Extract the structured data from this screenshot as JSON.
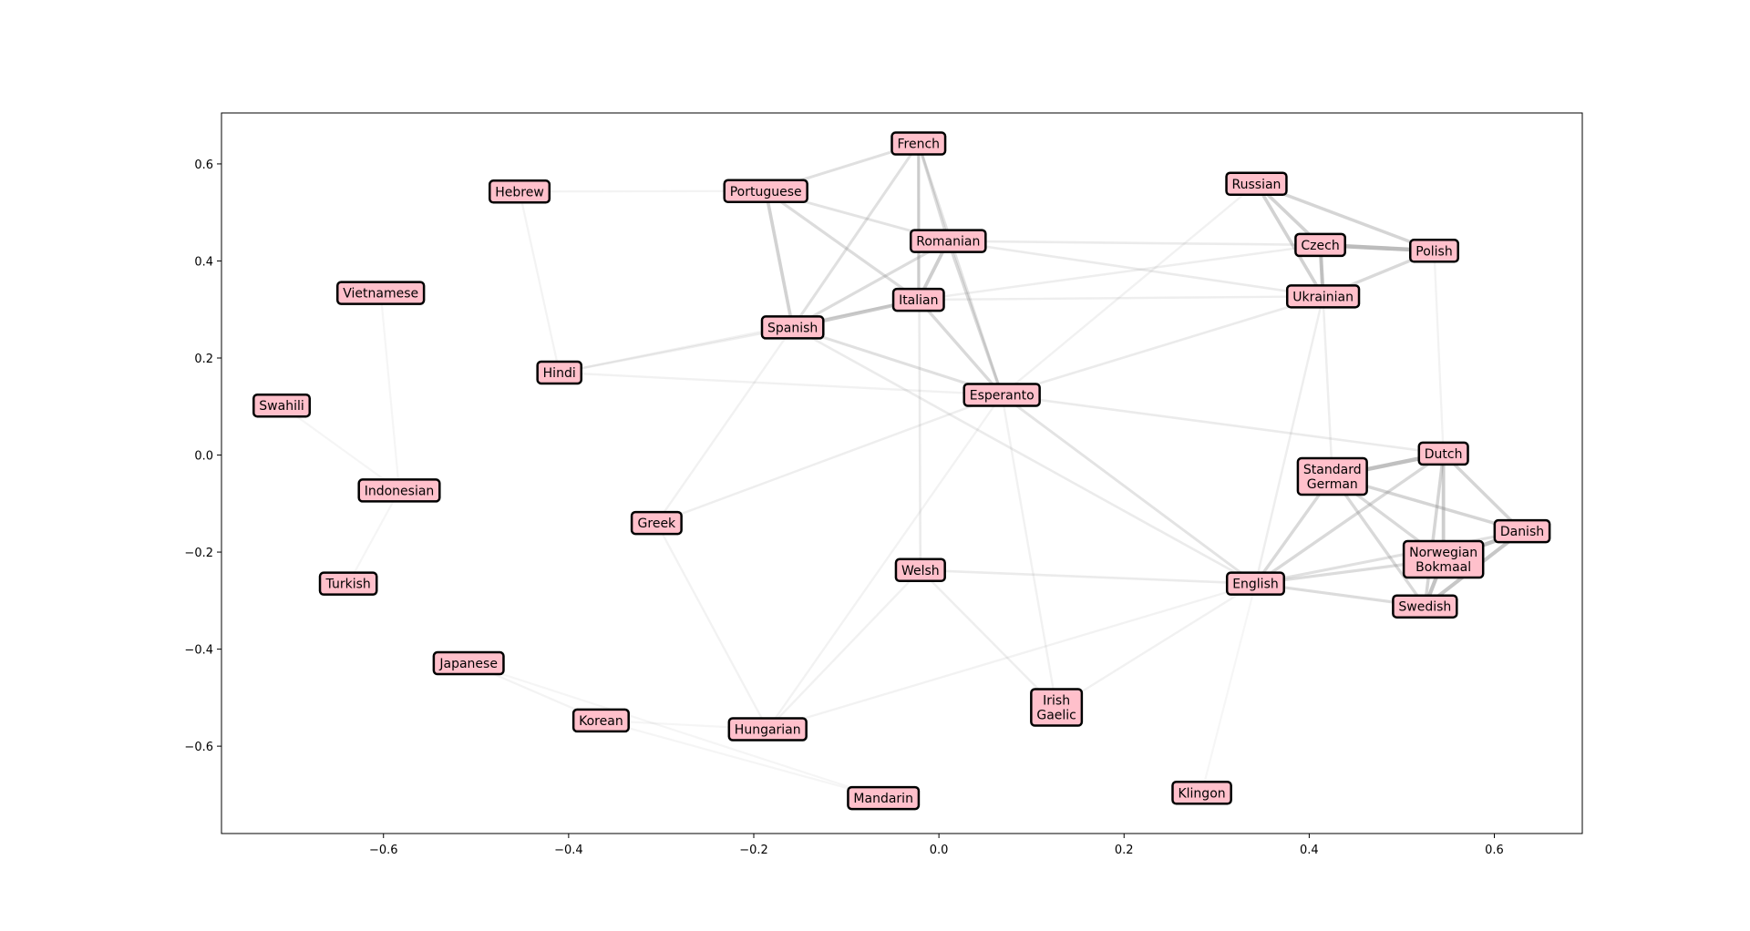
{
  "chart_data": {
    "type": "scatter",
    "title": "",
    "xlabel": "",
    "ylabel": "",
    "xlim": [
      -0.775,
      0.695
    ],
    "ylim": [
      -0.78,
      0.705
    ],
    "xticks": [
      -0.6,
      -0.4,
      -0.2,
      0.0,
      0.2,
      0.4,
      0.6
    ],
    "yticks": [
      -0.6,
      -0.4,
      -0.2,
      0.0,
      0.2,
      0.4,
      0.6
    ],
    "xtick_labels": [
      "−0.6",
      "−0.4",
      "−0.2",
      "0.0",
      "0.2",
      "0.4",
      "0.6"
    ],
    "ytick_labels": [
      "−0.6",
      "−0.4",
      "−0.2",
      "0.0",
      "0.2",
      "0.4",
      "0.6"
    ],
    "grid": false,
    "colors": {
      "node_fill": "#ffc0cb",
      "node_border": "#000000",
      "edge": "#888888",
      "frame": "#000000"
    },
    "nodes": [
      {
        "name": "French",
        "x": -0.022,
        "y": 0.642
      },
      {
        "name": "Hebrew",
        "x": -0.453,
        "y": 0.543
      },
      {
        "name": "Portuguese",
        "x": -0.187,
        "y": 0.544
      },
      {
        "name": "Russian",
        "x": 0.343,
        "y": 0.559
      },
      {
        "name": "Romanian",
        "x": 0.01,
        "y": 0.441
      },
      {
        "name": "Czech",
        "x": 0.412,
        "y": 0.433
      },
      {
        "name": "Polish",
        "x": 0.535,
        "y": 0.421
      },
      {
        "name": "Vietnamese",
        "x": -0.603,
        "y": 0.334
      },
      {
        "name": "Italian",
        "x": -0.022,
        "y": 0.32
      },
      {
        "name": "Ukrainian",
        "x": 0.415,
        "y": 0.327
      },
      {
        "name": "Spanish",
        "x": -0.158,
        "y": 0.263
      },
      {
        "name": "Hindi",
        "x": -0.41,
        "y": 0.17
      },
      {
        "name": "Swahili",
        "x": -0.71,
        "y": 0.102
      },
      {
        "name": "Esperanto",
        "x": 0.068,
        "y": 0.124
      },
      {
        "name": "Dutch",
        "x": 0.545,
        "y": 0.003
      },
      {
        "name": "Standard\nGerman",
        "x": 0.425,
        "y": -0.044
      },
      {
        "name": "Indonesian",
        "x": -0.583,
        "y": -0.073
      },
      {
        "name": "Greek",
        "x": -0.305,
        "y": -0.14
      },
      {
        "name": "Danish",
        "x": 0.63,
        "y": -0.157
      },
      {
        "name": "Norwegian\nBokmaal",
        "x": 0.545,
        "y": -0.215
      },
      {
        "name": "Welsh",
        "x": -0.02,
        "y": -0.237
      },
      {
        "name": "Turkish",
        "x": -0.638,
        "y": -0.265
      },
      {
        "name": "English",
        "x": 0.342,
        "y": -0.265
      },
      {
        "name": "Swedish",
        "x": 0.525,
        "y": -0.312
      },
      {
        "name": "Japanese",
        "x": -0.508,
        "y": -0.429
      },
      {
        "name": "Irish\nGaelic",
        "x": 0.127,
        "y": -0.52
      },
      {
        "name": "Korean",
        "x": -0.365,
        "y": -0.547
      },
      {
        "name": "Hungarian",
        "x": -0.185,
        "y": -0.565
      },
      {
        "name": "Klingon",
        "x": 0.284,
        "y": -0.696
      },
      {
        "name": "Mandarin",
        "x": -0.06,
        "y": -0.707
      }
    ],
    "edges": [
      {
        "source": "Czech",
        "target": "Polish",
        "weight": 0.85
      },
      {
        "source": "Dutch",
        "target": "Standard\nGerman",
        "weight": 0.8
      },
      {
        "source": "Czech",
        "target": "Ukrainian",
        "weight": 0.7
      },
      {
        "source": "Danish",
        "target": "Norwegian\nBokmaal",
        "weight": 0.8
      },
      {
        "source": "Norwegian\nBokmaal",
        "target": "Swedish",
        "weight": 0.75
      },
      {
        "source": "Danish",
        "target": "Swedish",
        "weight": 0.7
      },
      {
        "source": "Dutch",
        "target": "Norwegian\nBokmaal",
        "weight": 0.6
      },
      {
        "source": "Italian",
        "target": "Spanish",
        "weight": 0.65
      },
      {
        "source": "Italian",
        "target": "Romanian",
        "weight": 0.6
      },
      {
        "source": "Portuguese",
        "target": "Spanish",
        "weight": 0.55
      },
      {
        "source": "Russian",
        "target": "Czech",
        "weight": 0.55
      },
      {
        "source": "Russian",
        "target": "Ukrainian",
        "weight": 0.55
      },
      {
        "source": "Russian",
        "target": "Polish",
        "weight": 0.5
      },
      {
        "source": "Polish",
        "target": "Ukrainian",
        "weight": 0.45
      },
      {
        "source": "Dutch",
        "target": "Danish",
        "weight": 0.5
      },
      {
        "source": "Dutch",
        "target": "Swedish",
        "weight": 0.5
      },
      {
        "source": "Standard\nGerman",
        "target": "Danish",
        "weight": 0.5
      },
      {
        "source": "Standard\nGerman",
        "target": "Norwegian\nBokmaal",
        "weight": 0.45
      },
      {
        "source": "Standard\nGerman",
        "target": "Swedish",
        "weight": 0.45
      },
      {
        "source": "English",
        "target": "Standard\nGerman",
        "weight": 0.45
      },
      {
        "source": "English",
        "target": "Dutch",
        "weight": 0.45
      },
      {
        "source": "English",
        "target": "Norwegian\nBokmaal",
        "weight": 0.4
      },
      {
        "source": "English",
        "target": "Swedish",
        "weight": 0.4
      },
      {
        "source": "English",
        "target": "Danish",
        "weight": 0.35
      },
      {
        "source": "French",
        "target": "Italian",
        "weight": 0.45
      },
      {
        "source": "French",
        "target": "Romanian",
        "weight": 0.4
      },
      {
        "source": "French",
        "target": "Spanish",
        "weight": 0.35
      },
      {
        "source": "French",
        "target": "Portuguese",
        "weight": 0.35
      },
      {
        "source": "Portuguese",
        "target": "Italian",
        "weight": 0.4
      },
      {
        "source": "Portuguese",
        "target": "Romanian",
        "weight": 0.3
      },
      {
        "source": "Romanian",
        "target": "Spanish",
        "weight": 0.4
      },
      {
        "source": "Romanian",
        "target": "Esperanto",
        "weight": 0.45
      },
      {
        "source": "Italian",
        "target": "Esperanto",
        "weight": 0.45
      },
      {
        "source": "Spanish",
        "target": "Esperanto",
        "weight": 0.35
      },
      {
        "source": "French",
        "target": "Esperanto",
        "weight": 0.3
      },
      {
        "source": "Esperanto",
        "target": "English",
        "weight": 0.3
      },
      {
        "source": "Esperanto",
        "target": "Ukrainian",
        "weight": 0.2
      },
      {
        "source": "Esperanto",
        "target": "Dutch",
        "weight": 0.2
      },
      {
        "source": "Romanian",
        "target": "Czech",
        "weight": 0.2
      },
      {
        "source": "Romanian",
        "target": "Ukrainian",
        "weight": 0.2
      },
      {
        "source": "Italian",
        "target": "Czech",
        "weight": 0.15
      },
      {
        "source": "Italian",
        "target": "Ukrainian",
        "weight": 0.15
      },
      {
        "source": "Spanish",
        "target": "English",
        "weight": 0.2
      },
      {
        "source": "French",
        "target": "Welsh",
        "weight": 0.2
      },
      {
        "source": "Welsh",
        "target": "English",
        "weight": 0.2
      },
      {
        "source": "Welsh",
        "target": "Irish\nGaelic",
        "weight": 0.15
      },
      {
        "source": "Welsh",
        "target": "Hungarian",
        "weight": 0.12
      },
      {
        "source": "Greek",
        "target": "Esperanto",
        "weight": 0.15
      },
      {
        "source": "Greek",
        "target": "Spanish",
        "weight": 0.12
      },
      {
        "source": "Greek",
        "target": "Hungarian",
        "weight": 0.1
      },
      {
        "source": "Hindi",
        "target": "Spanish",
        "weight": 0.15
      },
      {
        "source": "Hindi",
        "target": "Italian",
        "weight": 0.12
      },
      {
        "source": "Hindi",
        "target": "Esperanto",
        "weight": 0.12
      },
      {
        "source": "Irish\nGaelic",
        "target": "English",
        "weight": 0.12
      },
      {
        "source": "Irish\nGaelic",
        "target": "Esperanto",
        "weight": 0.12
      },
      {
        "source": "Hungarian",
        "target": "English",
        "weight": 0.1
      },
      {
        "source": "Hungarian",
        "target": "Esperanto",
        "weight": 0.1
      },
      {
        "source": "Russian",
        "target": "Esperanto",
        "weight": 0.12
      },
      {
        "source": "Ukrainian",
        "target": "English",
        "weight": 0.15
      },
      {
        "source": "Czech",
        "target": "Standard\nGerman",
        "weight": 0.15
      },
      {
        "source": "Polish",
        "target": "Dutch",
        "weight": 0.1
      },
      {
        "source": "Hebrew",
        "target": "Portuguese",
        "weight": 0.08
      },
      {
        "source": "Hebrew",
        "target": "Hindi",
        "weight": 0.08
      },
      {
        "source": "Vietnamese",
        "target": "Indonesian",
        "weight": 0.06
      },
      {
        "source": "Swahili",
        "target": "Indonesian",
        "weight": 0.06
      },
      {
        "source": "Turkish",
        "target": "Indonesian",
        "weight": 0.06
      },
      {
        "source": "Japanese",
        "target": "Korean",
        "weight": 0.08
      },
      {
        "source": "Mandarin",
        "target": "Korean",
        "weight": 0.06
      },
      {
        "source": "Mandarin",
        "target": "Japanese",
        "weight": 0.06
      },
      {
        "source": "Klingon",
        "target": "English",
        "weight": 0.05
      },
      {
        "source": "Korean",
        "target": "Hungarian",
        "weight": 0.06
      }
    ]
  }
}
